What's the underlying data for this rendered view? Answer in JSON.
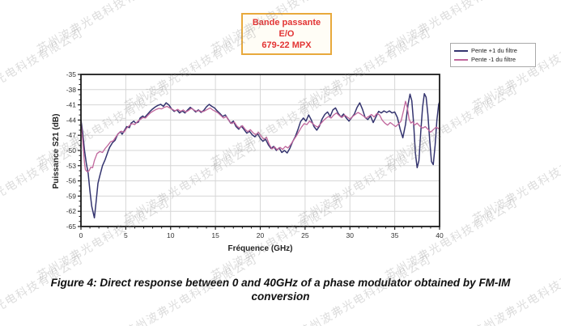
{
  "watermark": {
    "text": "苏州波弗光电科技有限公司"
  },
  "title_box": {
    "line1": "Bande passante E/O",
    "line2": "679-22 MPX",
    "text_color": "#e23434",
    "border_color": "#e8a93c"
  },
  "legend": {
    "items": [
      {
        "label": "Pente +1 du filtre",
        "color": "#34346f"
      },
      {
        "label": "Pente -1 du filtre",
        "color": "#c0669c"
      }
    ]
  },
  "caption": "Figure 4: Direct response between 0 and 40GHz of a phase modulator obtained by FM-IM conversion",
  "chart_data": {
    "type": "line",
    "title": "Bande passante E/O 679-22 MPX",
    "xlabel": "Fréquence (GHz)",
    "ylabel": "Puissance S21 (dB)",
    "xlim": [
      0,
      40
    ],
    "ylim": [
      -65,
      -35
    ],
    "xticks": [
      0,
      5,
      10,
      15,
      20,
      25,
      30,
      35,
      40
    ],
    "yticks": [
      -35,
      -38,
      -41,
      -44,
      -47,
      -50,
      -53,
      -56,
      -59,
      -62,
      -65
    ],
    "grid": true,
    "grid_color": "#d6d6d6",
    "frame_color": "#1c1c1c",
    "legend_position": "outside-top-right",
    "series": [
      {
        "name": "Pente +1 du filtre",
        "color": "#34346f",
        "width": 1.5,
        "points": [
          [
            0,
            -44
          ],
          [
            0.2,
            -46.5
          ],
          [
            0.4,
            -50
          ],
          [
            0.6,
            -52.5
          ],
          [
            0.8,
            -54.5
          ],
          [
            1.0,
            -58
          ],
          [
            1.2,
            -61
          ],
          [
            1.5,
            -63.3
          ],
          [
            1.7,
            -60
          ],
          [
            1.9,
            -56.5
          ],
          [
            2.1,
            -55
          ],
          [
            2.4,
            -53
          ],
          [
            2.7,
            -51.8
          ],
          [
            3.0,
            -50.3
          ],
          [
            3.2,
            -49.4
          ],
          [
            3.5,
            -48.5
          ],
          [
            3.8,
            -48.0
          ],
          [
            4.1,
            -46.8
          ],
          [
            4.4,
            -46.3
          ],
          [
            4.6,
            -46.8
          ],
          [
            4.9,
            -45.9
          ],
          [
            5.1,
            -45.3
          ],
          [
            5.4,
            -45.5
          ],
          [
            5.6,
            -44.6
          ],
          [
            5.9,
            -44.2
          ],
          [
            6.1,
            -44.6
          ],
          [
            6.4,
            -44.4
          ],
          [
            6.6,
            -43.6
          ],
          [
            6.9,
            -43.2
          ],
          [
            7.1,
            -43.5
          ],
          [
            7.4,
            -42.9
          ],
          [
            7.7,
            -42.3
          ],
          [
            8.0,
            -41.8
          ],
          [
            8.3,
            -41.4
          ],
          [
            8.6,
            -41.1
          ],
          [
            8.9,
            -40.9
          ],
          [
            9.2,
            -41.3
          ],
          [
            9.5,
            -40.6
          ],
          [
            9.8,
            -41.0
          ],
          [
            10.1,
            -41.8
          ],
          [
            10.4,
            -42.3
          ],
          [
            10.7,
            -42.0
          ],
          [
            11.0,
            -42.6
          ],
          [
            11.3,
            -42.2
          ],
          [
            11.6,
            -42.6
          ],
          [
            11.9,
            -42.0
          ],
          [
            12.2,
            -41.5
          ],
          [
            12.5,
            -41.9
          ],
          [
            12.8,
            -42.4
          ],
          [
            13.1,
            -42.0
          ],
          [
            13.4,
            -42.5
          ],
          [
            13.7,
            -42.1
          ],
          [
            14.0,
            -41.4
          ],
          [
            14.3,
            -40.9
          ],
          [
            14.6,
            -41.3
          ],
          [
            14.9,
            -41.6
          ],
          [
            15.2,
            -42.2
          ],
          [
            15.5,
            -42.7
          ],
          [
            15.8,
            -43.3
          ],
          [
            16.1,
            -43.0
          ],
          [
            16.4,
            -43.8
          ],
          [
            16.7,
            -44.6
          ],
          [
            17.0,
            -44.2
          ],
          [
            17.3,
            -45.3
          ],
          [
            17.6,
            -45.8
          ],
          [
            17.9,
            -45.2
          ],
          [
            18.2,
            -45.9
          ],
          [
            18.5,
            -46.6
          ],
          [
            18.8,
            -46.2
          ],
          [
            19.1,
            -46.9
          ],
          [
            19.4,
            -47.3
          ],
          [
            19.7,
            -46.7
          ],
          [
            20.0,
            -47.6
          ],
          [
            20.3,
            -48.2
          ],
          [
            20.6,
            -47.8
          ],
          [
            20.9,
            -48.9
          ],
          [
            21.2,
            -49.6
          ],
          [
            21.5,
            -49.2
          ],
          [
            21.8,
            -50.0
          ],
          [
            22.1,
            -49.5
          ],
          [
            22.4,
            -50.4
          ],
          [
            22.7,
            -50.0
          ],
          [
            23.0,
            -50.5
          ],
          [
            23.3,
            -49.6
          ],
          [
            23.6,
            -48.3
          ],
          [
            23.9,
            -47.3
          ],
          [
            24.2,
            -45.9
          ],
          [
            24.5,
            -44.3
          ],
          [
            24.8,
            -43.6
          ],
          [
            25.1,
            -44.2
          ],
          [
            25.4,
            -43.0
          ],
          [
            25.7,
            -44.0
          ],
          [
            26.0,
            -45.3
          ],
          [
            26.3,
            -46.0
          ],
          [
            26.6,
            -45.2
          ],
          [
            26.9,
            -43.8
          ],
          [
            27.2,
            -42.9
          ],
          [
            27.5,
            -42.4
          ],
          [
            27.8,
            -43.3
          ],
          [
            28.1,
            -42.0
          ],
          [
            28.4,
            -41.6
          ],
          [
            28.7,
            -42.7
          ],
          [
            29.0,
            -43.4
          ],
          [
            29.3,
            -42.8
          ],
          [
            29.6,
            -43.6
          ],
          [
            29.9,
            -44.2
          ],
          [
            30.2,
            -43.5
          ],
          [
            30.5,
            -42.8
          ],
          [
            30.8,
            -41.5
          ],
          [
            31.1,
            -40.6
          ],
          [
            31.4,
            -41.9
          ],
          [
            31.7,
            -43.5
          ],
          [
            32.0,
            -43.9
          ],
          [
            32.3,
            -43.2
          ],
          [
            32.6,
            -44.5
          ],
          [
            32.9,
            -43.4
          ],
          [
            33.2,
            -42.3
          ],
          [
            33.5,
            -42.6
          ],
          [
            33.8,
            -42.2
          ],
          [
            34.1,
            -42.5
          ],
          [
            34.4,
            -42.2
          ],
          [
            34.7,
            -42.6
          ],
          [
            35.0,
            -42.4
          ],
          [
            35.3,
            -43.5
          ],
          [
            35.6,
            -45.8
          ],
          [
            35.9,
            -47.5
          ],
          [
            36.2,
            -44.9
          ],
          [
            36.5,
            -40.8
          ],
          [
            36.7,
            -38.9
          ],
          [
            36.9,
            -40.2
          ],
          [
            37.1,
            -44.5
          ],
          [
            37.3,
            -50.5
          ],
          [
            37.5,
            -53.4
          ],
          [
            37.7,
            -52.0
          ],
          [
            37.9,
            -46.5
          ],
          [
            38.1,
            -41.5
          ],
          [
            38.3,
            -38.8
          ],
          [
            38.5,
            -39.5
          ],
          [
            38.7,
            -43.0
          ],
          [
            38.9,
            -48.0
          ],
          [
            39.1,
            -52.2
          ],
          [
            39.3,
            -52.8
          ],
          [
            39.5,
            -49.0
          ],
          [
            39.7,
            -44.0
          ],
          [
            39.9,
            -40.9
          ],
          [
            40.0,
            -40.4
          ]
        ]
      },
      {
        "name": "Pente -1 du filtre",
        "color": "#c0669c",
        "width": 1.3,
        "points": [
          [
            0,
            -44.5
          ],
          [
            0.2,
            -48
          ],
          [
            0.4,
            -52.5
          ],
          [
            0.5,
            -53.8
          ],
          [
            0.7,
            -54.2
          ],
          [
            0.9,
            -54.0
          ],
          [
            1.1,
            -53.3
          ],
          [
            1.3,
            -53.4
          ],
          [
            1.5,
            -52.0
          ],
          [
            1.8,
            -50.6
          ],
          [
            2.1,
            -50.2
          ],
          [
            2.4,
            -50.4
          ],
          [
            2.7,
            -49.6
          ],
          [
            3.0,
            -49.0
          ],
          [
            3.3,
            -48.3
          ],
          [
            3.6,
            -48.1
          ],
          [
            3.9,
            -47.3
          ],
          [
            4.2,
            -46.6
          ],
          [
            4.5,
            -46.2
          ],
          [
            4.8,
            -46.4
          ],
          [
            5.1,
            -45.6
          ],
          [
            5.4,
            -45.1
          ],
          [
            5.7,
            -44.7
          ],
          [
            6.0,
            -44.9
          ],
          [
            6.3,
            -44.3
          ],
          [
            6.6,
            -43.9
          ],
          [
            6.9,
            -43.5
          ],
          [
            7.2,
            -43.6
          ],
          [
            7.5,
            -43.0
          ],
          [
            7.8,
            -42.5
          ],
          [
            8.1,
            -42.2
          ],
          [
            8.4,
            -41.9
          ],
          [
            8.7,
            -41.7
          ],
          [
            9.0,
            -41.8
          ],
          [
            9.3,
            -41.5
          ],
          [
            9.6,
            -41.3
          ],
          [
            9.9,
            -41.6
          ],
          [
            10.2,
            -41.9
          ],
          [
            10.5,
            -42.2
          ],
          [
            10.8,
            -41.9
          ],
          [
            11.1,
            -42.3
          ],
          [
            11.4,
            -42.0
          ],
          [
            11.7,
            -42.4
          ],
          [
            12.0,
            -42.1
          ],
          [
            12.3,
            -41.7
          ],
          [
            12.6,
            -42.0
          ],
          [
            12.9,
            -42.3
          ],
          [
            13.2,
            -42.1
          ],
          [
            13.5,
            -42.4
          ],
          [
            13.8,
            -42.2
          ],
          [
            14.1,
            -41.9
          ],
          [
            14.4,
            -41.6
          ],
          [
            14.7,
            -42.0
          ],
          [
            15.0,
            -42.3
          ],
          [
            15.3,
            -42.6
          ],
          [
            15.6,
            -43.1
          ],
          [
            15.9,
            -43.6
          ],
          [
            16.2,
            -43.3
          ],
          [
            16.5,
            -44.1
          ],
          [
            16.8,
            -44.7
          ],
          [
            17.1,
            -44.4
          ],
          [
            17.4,
            -45.2
          ],
          [
            17.7,
            -45.6
          ],
          [
            18.0,
            -45.1
          ],
          [
            18.3,
            -45.8
          ],
          [
            18.6,
            -46.3
          ],
          [
            18.9,
            -45.9
          ],
          [
            19.2,
            -46.5
          ],
          [
            19.5,
            -46.9
          ],
          [
            19.8,
            -46.4
          ],
          [
            20.1,
            -47.2
          ],
          [
            20.4,
            -47.8
          ],
          [
            20.7,
            -47.4
          ],
          [
            21.0,
            -48.8
          ],
          [
            21.3,
            -49.7
          ],
          [
            21.6,
            -49.3
          ],
          [
            21.9,
            -49.9
          ],
          [
            22.2,
            -49.4
          ],
          [
            22.5,
            -49.8
          ],
          [
            22.8,
            -49.2
          ],
          [
            23.1,
            -49.5
          ],
          [
            23.4,
            -48.8
          ],
          [
            23.7,
            -48.0
          ],
          [
            24.0,
            -47.2
          ],
          [
            24.3,
            -46.3
          ],
          [
            24.6,
            -45.4
          ],
          [
            24.9,
            -44.7
          ],
          [
            25.2,
            -44.9
          ],
          [
            25.5,
            -44.2
          ],
          [
            25.8,
            -44.6
          ],
          [
            26.1,
            -45.1
          ],
          [
            26.4,
            -45.4
          ],
          [
            26.7,
            -44.8
          ],
          [
            27.0,
            -44.2
          ],
          [
            27.3,
            -43.7
          ],
          [
            27.6,
            -43.3
          ],
          [
            27.9,
            -43.6
          ],
          [
            28.2,
            -43.0
          ],
          [
            28.5,
            -42.6
          ],
          [
            28.8,
            -43.1
          ],
          [
            29.1,
            -43.5
          ],
          [
            29.4,
            -43.0
          ],
          [
            29.7,
            -43.4
          ],
          [
            30.0,
            -43.8
          ],
          [
            30.3,
            -43.3
          ],
          [
            30.6,
            -42.9
          ],
          [
            30.9,
            -42.5
          ],
          [
            31.2,
            -42.8
          ],
          [
            31.5,
            -43.2
          ],
          [
            31.8,
            -43.6
          ],
          [
            32.1,
            -43.3
          ],
          [
            32.4,
            -42.9
          ],
          [
            32.7,
            -43.4
          ],
          [
            33.0,
            -42.7
          ],
          [
            33.3,
            -43.0
          ],
          [
            33.6,
            -44.0
          ],
          [
            33.9,
            -44.6
          ],
          [
            34.2,
            -45.0
          ],
          [
            34.5,
            -44.5
          ],
          [
            34.8,
            -44.9
          ],
          [
            35.1,
            -45.3
          ],
          [
            35.4,
            -44.8
          ],
          [
            35.7,
            -44.2
          ],
          [
            36.0,
            -42.0
          ],
          [
            36.2,
            -40.3
          ],
          [
            36.4,
            -41.5
          ],
          [
            36.6,
            -43.8
          ],
          [
            36.8,
            -44.6
          ],
          [
            37.0,
            -44.3
          ],
          [
            37.2,
            -45.0
          ],
          [
            37.5,
            -44.6
          ],
          [
            37.8,
            -45.2
          ],
          [
            38.1,
            -45.6
          ],
          [
            38.4,
            -45.3
          ],
          [
            38.7,
            -45.8
          ],
          [
            39.0,
            -46.4
          ],
          [
            39.3,
            -45.9
          ],
          [
            39.6,
            -45.4
          ],
          [
            39.9,
            -45.7
          ],
          [
            40.0,
            -45.5
          ]
        ]
      }
    ]
  }
}
